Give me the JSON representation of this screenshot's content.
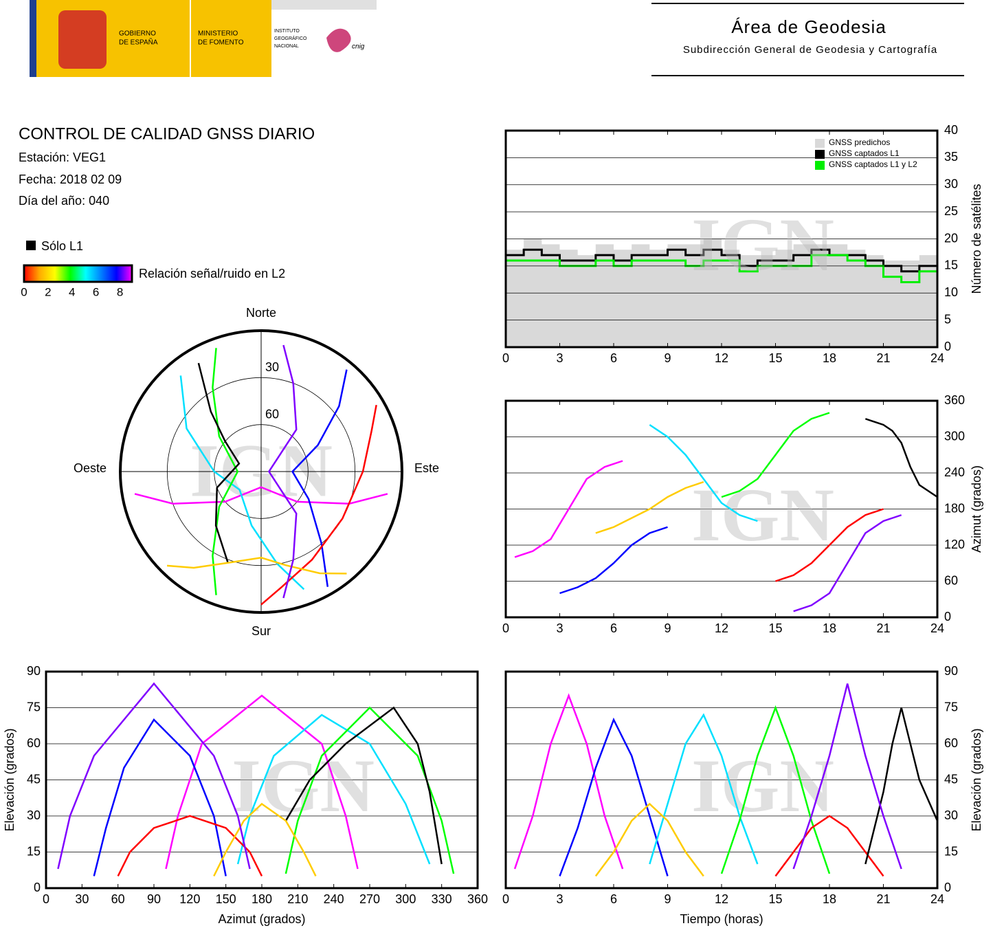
{
  "header": {
    "logos": {
      "gobierno": [
        "GOBIERNO",
        "DE ESPAÑA"
      ],
      "ministerio": [
        "MINISTERIO",
        "DE FOMENTO"
      ],
      "instituto": [
        "INSTITUTO",
        "GEOGRÁFICO",
        "NACIONAL"
      ],
      "cnig": "cnig"
    },
    "title": "Área de Geodesia",
    "subtitle": "Subdirección General de Geodesia y Cartografía"
  },
  "report": {
    "title": "CONTROL DE CALIDAD GNSS DIARIO",
    "lines": [
      "Estación: VEG1",
      "Fecha: 2018 02 09",
      "Día del año: 040"
    ],
    "legend": {
      "l1_only": {
        "label": "Sólo L1",
        "color": "#000000"
      },
      "colorbar": {
        "label": "Relación señal/ruido en L2",
        "colors": [
          "#ff0000",
          "#ffaa00",
          "#ffff00",
          "#00ff00",
          "#00ffff",
          "#0080ff",
          "#0000ff",
          "#ff00ff"
        ],
        "lim": [
          0,
          9
        ],
        "ticks": [
          0,
          2,
          4,
          6,
          8
        ]
      }
    }
  },
  "chart_data": [
    {
      "type": "polar",
      "watermark": "IGN",
      "direction_labels": {
        "north": "Norte",
        "south": "Sur",
        "east": "Este",
        "west": "Oeste"
      },
      "rlim": [
        90,
        0
      ],
      "rticks": [
        30,
        60
      ],
      "series": [
        {
          "color": "#ff00ff",
          "azimuth": [
            100,
            110,
            130,
            180,
            230,
            250,
            260
          ],
          "values": [
            8,
            30,
            60,
            80,
            60,
            30,
            8
          ]
        },
        {
          "color": "#0000ff",
          "azimuth": [
            40,
            50,
            65,
            90,
            120,
            140,
            150
          ],
          "values": [
            5,
            25,
            50,
            70,
            55,
            30,
            5
          ]
        },
        {
          "color": "#00e0ff",
          "azimuth": [
            320,
            300,
            270,
            230,
            190,
            170,
            160
          ],
          "values": [
            10,
            35,
            60,
            72,
            55,
            30,
            10
          ]
        },
        {
          "color": "#00ff00",
          "azimuth": [
            200,
            210,
            230,
            270,
            310,
            330,
            340
          ],
          "values": [
            6,
            28,
            55,
            75,
            55,
            28,
            6
          ]
        },
        {
          "color": "#ff0000",
          "azimuth": [
            60,
            70,
            90,
            120,
            150,
            170,
            180
          ],
          "values": [
            5,
            15,
            25,
            30,
            25,
            15,
            5
          ]
        },
        {
          "color": "#000000",
          "azimuth": [
            330,
            320,
            310,
            290,
            250,
            220,
            200
          ],
          "values": [
            10,
            40,
            60,
            75,
            60,
            45,
            28
          ]
        },
        {
          "color": "#ffcc00",
          "azimuth": [
            140,
            150,
            165,
            180,
            200,
            215,
            225
          ],
          "values": [
            5,
            15,
            28,
            35,
            28,
            15,
            5
          ]
        },
        {
          "color": "#8000ff",
          "azimuth": [
            10,
            20,
            40,
            90,
            140,
            160,
            170
          ],
          "values": [
            8,
            30,
            55,
            85,
            55,
            30,
            8
          ]
        }
      ]
    },
    {
      "type": "step",
      "watermark": "IGN",
      "xlim": [
        0,
        24
      ],
      "xticks": [
        0,
        3,
        6,
        9,
        12,
        15,
        18,
        21,
        24
      ],
      "ylim": [
        0,
        40
      ],
      "yticks": [
        0,
        5,
        10,
        15,
        20,
        25,
        30,
        35,
        40
      ],
      "y_axis_side": "right",
      "ylabel": "Número de satélites",
      "grid": true,
      "legend": "upper right",
      "series": [
        {
          "name": "GNSS predichos",
          "color": "#d9d9d9",
          "fill": true,
          "x": [
            0,
            1,
            2,
            3,
            4,
            5,
            6,
            7,
            8,
            9,
            10,
            11,
            12,
            13,
            14,
            15,
            16,
            17,
            18,
            19,
            20,
            21,
            22,
            23,
            24
          ],
          "values": [
            18,
            20,
            19,
            18,
            17,
            19,
            18,
            19,
            18,
            19,
            19,
            20,
            18,
            17,
            17,
            18,
            19,
            19,
            19,
            18,
            17,
            16,
            16,
            17,
            17
          ]
        },
        {
          "name": "GNSS captados L1",
          "color": "#000000",
          "x": [
            0,
            1,
            2,
            3,
            4,
            5,
            6,
            7,
            8,
            9,
            10,
            11,
            12,
            13,
            14,
            15,
            16,
            17,
            18,
            19,
            20,
            21,
            22,
            23,
            24
          ],
          "values": [
            17,
            18,
            17,
            16,
            16,
            17,
            16,
            17,
            17,
            18,
            17,
            18,
            17,
            15,
            16,
            16,
            17,
            18,
            17,
            17,
            16,
            15,
            14,
            15,
            16
          ]
        },
        {
          "name": "GNSS captados L1 y L2",
          "color": "#00ee00",
          "x": [
            0,
            1,
            2,
            3,
            4,
            5,
            6,
            7,
            8,
            9,
            10,
            11,
            12,
            13,
            14,
            15,
            16,
            17,
            18,
            19,
            20,
            21,
            22,
            23,
            24
          ],
          "values": [
            16,
            16,
            16,
            15,
            15,
            16,
            15,
            16,
            16,
            16,
            15,
            16,
            16,
            14,
            15,
            15,
            15,
            17,
            17,
            16,
            15,
            13,
            12,
            14,
            14
          ]
        }
      ]
    },
    {
      "type": "line",
      "watermark": "IGN",
      "xlim": [
        0,
        24
      ],
      "xticks": [
        0,
        3,
        6,
        9,
        12,
        15,
        18,
        21,
        24
      ],
      "ylim": [
        0,
        360
      ],
      "yticks": [
        0,
        60,
        120,
        180,
        240,
        300,
        360
      ],
      "y_axis_side": "right",
      "ylabel": "Azimut (grados)",
      "grid": true,
      "series": [
        {
          "color": "#ff00ff",
          "x": [
            0.5,
            1.5,
            2.5,
            3.5,
            4.5,
            5.5,
            6.5
          ],
          "values": [
            100,
            110,
            130,
            180,
            230,
            250,
            260
          ]
        },
        {
          "color": "#0000ff",
          "x": [
            3,
            4,
            5,
            6,
            7,
            8,
            9
          ],
          "values": [
            40,
            50,
            65,
            90,
            120,
            140,
            150
          ]
        },
        {
          "color": "#00e0ff",
          "x": [
            8,
            9,
            10,
            11,
            12,
            13,
            14
          ],
          "values": [
            320,
            300,
            270,
            230,
            190,
            170,
            160
          ]
        },
        {
          "color": "#00ff00",
          "x": [
            12,
            13,
            14,
            15,
            16,
            17,
            18
          ],
          "values": [
            200,
            210,
            230,
            270,
            310,
            330,
            340
          ]
        },
        {
          "color": "#ff0000",
          "x": [
            15,
            16,
            17,
            18,
            19,
            20,
            21
          ],
          "values": [
            60,
            70,
            90,
            120,
            150,
            170,
            180
          ]
        },
        {
          "color": "#000000",
          "x": [
            20,
            21,
            21.5,
            22,
            22.5,
            23,
            24
          ],
          "values": [
            330,
            320,
            310,
            290,
            250,
            220,
            200
          ]
        },
        {
          "color": "#ffcc00",
          "x": [
            5,
            6,
            7,
            8,
            9,
            10,
            11
          ],
          "values": [
            140,
            150,
            165,
            180,
            200,
            215,
            225
          ]
        },
        {
          "color": "#8000ff",
          "x": [
            16,
            17,
            18,
            19,
            20,
            21,
            22
          ],
          "values": [
            10,
            20,
            40,
            90,
            140,
            160,
            170
          ]
        }
      ]
    },
    {
      "type": "line",
      "watermark": "IGN",
      "xlim": [
        0,
        360
      ],
      "xticks": [
        0,
        30,
        60,
        90,
        120,
        150,
        180,
        210,
        240,
        270,
        300,
        330,
        360
      ],
      "ylim": [
        0,
        90
      ],
      "yticks": [
        0,
        15,
        30,
        45,
        60,
        75,
        90
      ],
      "y_axis_side": "left",
      "xlabel": "Azimut (grados)",
      "ylabel": "Elevación (grados)",
      "grid": true,
      "series": [
        {
          "color": "#ff00ff",
          "x": [
            100,
            110,
            130,
            180,
            230,
            250,
            260
          ],
          "values": [
            8,
            30,
            60,
            80,
            60,
            30,
            8
          ]
        },
        {
          "color": "#0000ff",
          "x": [
            40,
            50,
            65,
            90,
            120,
            140,
            150
          ],
          "values": [
            5,
            25,
            50,
            70,
            55,
            30,
            5
          ]
        },
        {
          "color": "#00e0ff",
          "x": [
            320,
            300,
            270,
            230,
            190,
            170,
            160
          ],
          "values": [
            10,
            35,
            60,
            72,
            55,
            30,
            10
          ]
        },
        {
          "color": "#00ff00",
          "x": [
            200,
            210,
            230,
            270,
            310,
            330,
            340
          ],
          "values": [
            6,
            28,
            55,
            75,
            55,
            28,
            6
          ]
        },
        {
          "color": "#ff0000",
          "x": [
            60,
            70,
            90,
            120,
            150,
            170,
            180
          ],
          "values": [
            5,
            15,
            25,
            30,
            25,
            15,
            5
          ]
        },
        {
          "color": "#000000",
          "x": [
            330,
            320,
            310,
            290,
            250,
            220,
            200
          ],
          "values": [
            10,
            40,
            60,
            75,
            60,
            45,
            28
          ]
        },
        {
          "color": "#ffcc00",
          "x": [
            140,
            150,
            165,
            180,
            200,
            215,
            225
          ],
          "values": [
            5,
            15,
            28,
            35,
            28,
            15,
            5
          ]
        },
        {
          "color": "#8000ff",
          "x": [
            10,
            20,
            40,
            90,
            140,
            160,
            170
          ],
          "values": [
            8,
            30,
            55,
            85,
            55,
            30,
            8
          ]
        }
      ]
    },
    {
      "type": "line",
      "watermark": "IGN",
      "xlim": [
        0,
        24
      ],
      "xticks": [
        0,
        3,
        6,
        9,
        12,
        15,
        18,
        21,
        24
      ],
      "ylim": [
        0,
        90
      ],
      "yticks": [
        0,
        15,
        30,
        45,
        60,
        75,
        90
      ],
      "y_axis_side": "right",
      "xlabel": "Tiempo (horas)",
      "ylabel": "Elevación (grados)",
      "grid": true,
      "series": [
        {
          "color": "#ff00ff",
          "x": [
            0.5,
            1.5,
            2.5,
            3.5,
            4.5,
            5.5,
            6.5
          ],
          "values": [
            8,
            30,
            60,
            80,
            60,
            30,
            8
          ]
        },
        {
          "color": "#0000ff",
          "x": [
            3,
            4,
            5,
            6,
            7,
            8,
            9
          ],
          "values": [
            5,
            25,
            50,
            70,
            55,
            30,
            5
          ]
        },
        {
          "color": "#00e0ff",
          "x": [
            8,
            9,
            10,
            11,
            12,
            13,
            14
          ],
          "values": [
            10,
            35,
            60,
            72,
            55,
            30,
            10
          ]
        },
        {
          "color": "#00ff00",
          "x": [
            12,
            13,
            14,
            15,
            16,
            17,
            18
          ],
          "values": [
            6,
            28,
            55,
            75,
            55,
            28,
            6
          ]
        },
        {
          "color": "#ff0000",
          "x": [
            15,
            16,
            17,
            18,
            19,
            20,
            21
          ],
          "values": [
            5,
            15,
            25,
            30,
            25,
            15,
            5
          ]
        },
        {
          "color": "#000000",
          "x": [
            20,
            21,
            21.5,
            22,
            22.5,
            23,
            24
          ],
          "values": [
            10,
            40,
            60,
            75,
            60,
            45,
            28
          ]
        },
        {
          "color": "#ffcc00",
          "x": [
            5,
            6,
            7,
            8,
            9,
            10,
            11
          ],
          "values": [
            5,
            15,
            28,
            35,
            28,
            15,
            5
          ]
        },
        {
          "color": "#8000ff",
          "x": [
            16,
            17,
            18,
            19,
            20,
            21,
            22
          ],
          "values": [
            8,
            30,
            55,
            85,
            55,
            30,
            8
          ]
        }
      ]
    }
  ]
}
